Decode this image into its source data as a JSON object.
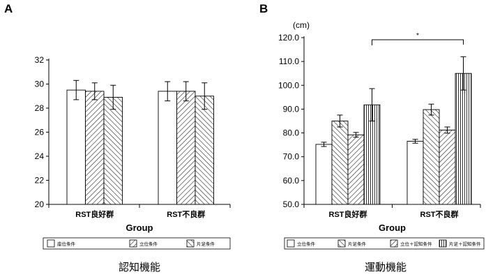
{
  "chart_data": [
    {
      "panel": "A",
      "type": "bar",
      "caption": "認知機能",
      "xlabel": "Group",
      "ylabel": "",
      "unit": "",
      "categories": [
        "RST良好群",
        "RST不良群"
      ],
      "ylim": [
        20,
        32
      ],
      "yticks": [
        "20",
        "22",
        "24",
        "26",
        "28",
        "30",
        "32"
      ],
      "series": [
        {
          "name": "座位条件",
          "values": [
            29.5,
            29.4
          ],
          "err": [
            0.8,
            0.8
          ],
          "pattern": "white"
        },
        {
          "name": "立位条件",
          "values": [
            29.4,
            29.4
          ],
          "err": [
            0.7,
            0.8
          ],
          "pattern": "diag-left"
        },
        {
          "name": "片足条件",
          "values": [
            28.9,
            29.0
          ],
          "err": [
            1.0,
            1.1
          ],
          "pattern": "diag-right"
        }
      ],
      "legend": [
        "座位条件",
        "立位条件",
        "片足条件"
      ],
      "grid": false,
      "legend_position": "bottom"
    },
    {
      "panel": "B",
      "type": "bar",
      "caption": "運動機能",
      "xlabel": "Group",
      "ylabel": "",
      "unit": "(cm)",
      "categories": [
        "RST良好群",
        "RST不良群"
      ],
      "ylim": [
        50,
        120
      ],
      "yticks": [
        "50.0",
        "60.0",
        "70.0",
        "80.0",
        "90.0",
        "100.0",
        "110.0",
        "120.0"
      ],
      "series": [
        {
          "name": "立位条件",
          "values": [
            75.2,
            76.5
          ],
          "err": [
            0.9,
            0.8
          ],
          "pattern": "white"
        },
        {
          "name": "片足条件",
          "values": [
            85.0,
            89.8
          ],
          "err": [
            2.5,
            2.3
          ],
          "pattern": "diag-right"
        },
        {
          "name": "立位＋認知条件",
          "values": [
            79.2,
            81.2
          ],
          "err": [
            1.0,
            1.3
          ],
          "pattern": "diag-left"
        },
        {
          "name": "片足＋認知条件",
          "values": [
            91.8,
            105.0
          ],
          "err": [
            6.8,
            7.0
          ],
          "pattern": "vertical"
        }
      ],
      "legend": [
        "立位条件",
        "片足条件",
        "立位＋認知条件",
        "片足＋認知条件"
      ],
      "significance": {
        "label": "*",
        "between": [
          "RST良好群 片足＋認知条件",
          "RST不良群 片足＋認知条件"
        ]
      },
      "grid": false,
      "legend_position": "bottom"
    }
  ]
}
